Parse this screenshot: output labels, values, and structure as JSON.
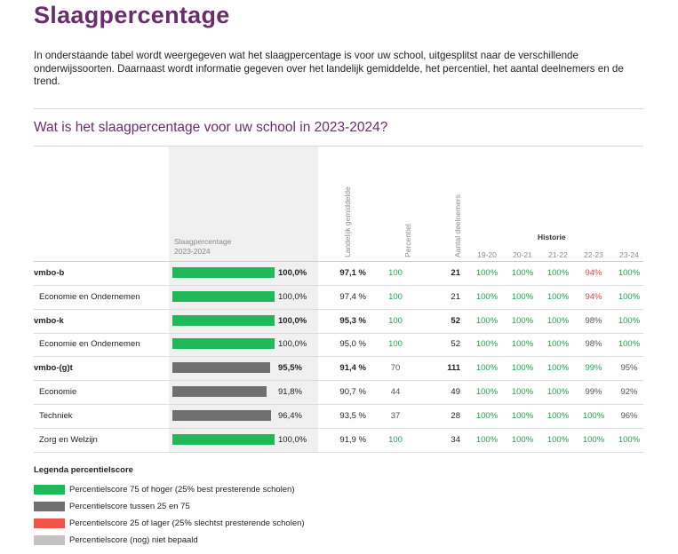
{
  "page": {
    "title": "Slaagpercentage",
    "intro": "In onderstaande tabel wordt weergegeven wat het slaagpercentage is voor uw school, uitgesplitst naar de verschillende onderwijssoorten. Daarnaast wordt informatie gegeven over het landelijk gemiddelde, het percentiel, het aantal deelnemers en de trend.",
    "section_title": "Wat is het slaagpercentage voor uw school in 2023-2024?"
  },
  "colors": {
    "green": "#21b85a",
    "gray": "#6f6f6f",
    "red": "#f0534b",
    "lightgray": "#c3c3c3",
    "green_text": "#21a84f",
    "red_text": "#e0453e",
    "gray_text": "#555555",
    "title_purple": "#6b2c6e"
  },
  "table": {
    "headers": {
      "slaag_line1": "Slaagpercentage",
      "slaag_line2": "2023-2024",
      "landelijk": "Landelijk gemiddelde",
      "percentiel": "Percentiel",
      "deelnemers": "Aantal deelnemers",
      "historie": "Historie",
      "years": [
        "19-20",
        "20-21",
        "21-22",
        "22-23",
        "23-24"
      ]
    },
    "rows": [
      {
        "label": "vmbo-b",
        "level": "main",
        "pct": 100.0,
        "pct_text": "100,0%",
        "bar": "green",
        "landelijk": "97,1 %",
        "percentiel": "100",
        "perc_color": "green",
        "deelnemers": "21",
        "hist": [
          {
            "v": "100%",
            "c": "green"
          },
          {
            "v": "100%",
            "c": "green"
          },
          {
            "v": "100%",
            "c": "green"
          },
          {
            "v": "94%",
            "c": "red"
          },
          {
            "v": "100%",
            "c": "green"
          }
        ]
      },
      {
        "label": "Economie en Ondernemen",
        "level": "sub",
        "pct": 100.0,
        "pct_text": "100,0%",
        "bar": "green",
        "landelijk": "97,4 %",
        "percentiel": "100",
        "perc_color": "green",
        "deelnemers": "21",
        "hist": [
          {
            "v": "100%",
            "c": "green"
          },
          {
            "v": "100%",
            "c": "green"
          },
          {
            "v": "100%",
            "c": "green"
          },
          {
            "v": "94%",
            "c": "red"
          },
          {
            "v": "100%",
            "c": "green"
          }
        ]
      },
      {
        "label": "vmbo-k",
        "level": "main",
        "pct": 100.0,
        "pct_text": "100,0%",
        "bar": "green",
        "landelijk": "95,3 %",
        "percentiel": "100",
        "perc_color": "green",
        "deelnemers": "52",
        "hist": [
          {
            "v": "100%",
            "c": "green"
          },
          {
            "v": "100%",
            "c": "green"
          },
          {
            "v": "100%",
            "c": "green"
          },
          {
            "v": "98%",
            "c": "gray"
          },
          {
            "v": "100%",
            "c": "green"
          }
        ]
      },
      {
        "label": "Economie en Ondernemen",
        "level": "sub",
        "pct": 100.0,
        "pct_text": "100,0%",
        "bar": "green",
        "landelijk": "95,0 %",
        "percentiel": "100",
        "perc_color": "green",
        "deelnemers": "52",
        "hist": [
          {
            "v": "100%",
            "c": "green"
          },
          {
            "v": "100%",
            "c": "green"
          },
          {
            "v": "100%",
            "c": "green"
          },
          {
            "v": "98%",
            "c": "gray"
          },
          {
            "v": "100%",
            "c": "green"
          }
        ]
      },
      {
        "label": "vmbo-(g)t",
        "level": "main",
        "pct": 95.5,
        "pct_text": "95,5%",
        "bar": "gray",
        "landelijk": "91,4 %",
        "percentiel": "70",
        "perc_color": "gray",
        "deelnemers": "111",
        "hist": [
          {
            "v": "100%",
            "c": "green"
          },
          {
            "v": "100%",
            "c": "green"
          },
          {
            "v": "100%",
            "c": "green"
          },
          {
            "v": "99%",
            "c": "green"
          },
          {
            "v": "95%",
            "c": "gray"
          }
        ]
      },
      {
        "label": "Economie",
        "level": "sub",
        "pct": 91.8,
        "pct_text": "91,8%",
        "bar": "gray",
        "landelijk": "90,7 %",
        "percentiel": "44",
        "perc_color": "gray",
        "deelnemers": "49",
        "hist": [
          {
            "v": "100%",
            "c": "green"
          },
          {
            "v": "100%",
            "c": "green"
          },
          {
            "v": "100%",
            "c": "green"
          },
          {
            "v": "99%",
            "c": "gray"
          },
          {
            "v": "92%",
            "c": "gray"
          }
        ]
      },
      {
        "label": "Techniek",
        "level": "sub",
        "pct": 96.4,
        "pct_text": "96,4%",
        "bar": "gray",
        "landelijk": "93,5 %",
        "percentiel": "37",
        "perc_color": "gray",
        "deelnemers": "28",
        "hist": [
          {
            "v": "100%",
            "c": "green"
          },
          {
            "v": "100%",
            "c": "green"
          },
          {
            "v": "100%",
            "c": "green"
          },
          {
            "v": "100%",
            "c": "green"
          },
          {
            "v": "96%",
            "c": "gray"
          }
        ]
      },
      {
        "label": "Zorg en Welzijn",
        "level": "sub",
        "pct": 100.0,
        "pct_text": "100,0%",
        "bar": "green",
        "landelijk": "91,9 %",
        "percentiel": "100",
        "perc_color": "green",
        "deelnemers": "34",
        "hist": [
          {
            "v": "100%",
            "c": "green"
          },
          {
            "v": "100%",
            "c": "green"
          },
          {
            "v": "100%",
            "c": "green"
          },
          {
            "v": "100%",
            "c": "green"
          },
          {
            "v": "100%",
            "c": "green"
          }
        ]
      }
    ]
  },
  "legend": {
    "title": "Legenda percentielscore",
    "items": [
      {
        "color": "green",
        "label": "Percentielscore 75 of hoger (25% best presterende scholen)"
      },
      {
        "color": "gray",
        "label": "Percentielscore tussen 25 en 75"
      },
      {
        "color": "red",
        "label": "Percentielscore 25 of lager (25% slechtst presterende scholen)"
      },
      {
        "color": "lightgray",
        "label": "Percentielscore (nog) niet bepaald"
      }
    ]
  }
}
